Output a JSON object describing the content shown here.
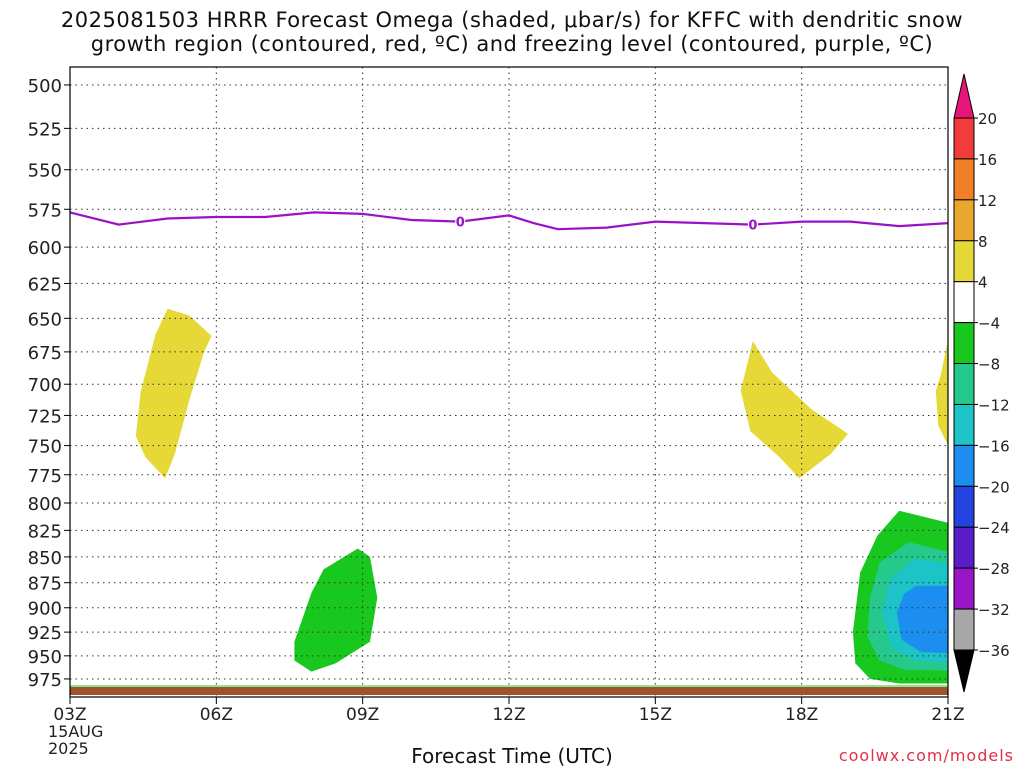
{
  "title_line1": "2025081503 HRRR Forecast Omega (shaded, μbar/s) for KFFC with dendritic snow",
  "title_line2": "growth region (contoured, red, ºC) and freezing level (contoured, purple, ºC)",
  "credit": "coolwx.com/models",
  "chart_data": {
    "type": "time-height cross section",
    "title": "2025081503 HRRR Forecast Omega (shaded, μbar/s) for KFFC with dendritic snow growth region (contoured, red, ºC) and freezing level (contoured, purple, ºC)",
    "xlabel": "Forecast Time (UTC)",
    "ylabel": "",
    "x_range_hours": [
      3,
      21
    ],
    "x_ticks": [
      {
        "hour": 3,
        "label": "03Z",
        "sub1": "15AUG",
        "sub2": "2025"
      },
      {
        "hour": 6,
        "label": "06Z"
      },
      {
        "hour": 9,
        "label": "09Z"
      },
      {
        "hour": 12,
        "label": "12Z"
      },
      {
        "hour": 15,
        "label": "15Z"
      },
      {
        "hour": 18,
        "label": "18Z"
      },
      {
        "hour": 21,
        "label": "21Z"
      }
    ],
    "y_scale": "log pressure (inverted)",
    "y_range_mb": [
      490,
      995
    ],
    "y_ticks": [
      500,
      525,
      550,
      575,
      600,
      625,
      650,
      675,
      700,
      725,
      750,
      775,
      800,
      825,
      850,
      875,
      900,
      925,
      950,
      975
    ],
    "grid": true,
    "colorbar": {
      "units": "μbar/s",
      "labels": [
        "20",
        "16",
        "12",
        "8",
        "4",
        "−4",
        "−8",
        "−12",
        "−16",
        "−20",
        "−24",
        "−28",
        "−32",
        "−36"
      ],
      "bins": [
        {
          "from": 20,
          "to": 24,
          "color": "#e8157a"
        },
        {
          "from": 16,
          "to": 20,
          "color": "#f23b3b"
        },
        {
          "from": 12,
          "to": 16,
          "color": "#f07f25"
        },
        {
          "from": 8,
          "to": 12,
          "color": "#e9a72e"
        },
        {
          "from": 4,
          "to": 8,
          "color": "#e6d836"
        },
        {
          "from": -4,
          "to": 4,
          "color": "#ffffff"
        },
        {
          "from": -8,
          "to": -4,
          "color": "#19c81e"
        },
        {
          "from": -12,
          "to": -8,
          "color": "#25c98c"
        },
        {
          "from": -16,
          "to": -12,
          "color": "#1cc4c8"
        },
        {
          "from": -20,
          "to": -16,
          "color": "#1b8ef0"
        },
        {
          "from": -24,
          "to": -20,
          "color": "#2342e0"
        },
        {
          "from": -28,
          "to": -24,
          "color": "#5a1ec8"
        },
        {
          "from": -32,
          "to": -28,
          "color": "#9a14c8"
        },
        {
          "from": -36,
          "to": -32,
          "color": "#a8a8a8"
        },
        {
          "from": -40,
          "to": -36,
          "color": "#000000"
        }
      ]
    },
    "freezing_level": {
      "color": "#9a12c6",
      "contour_label": "0",
      "label_hours": [
        11,
        17
      ],
      "points": [
        [
          3,
          577
        ],
        [
          4,
          585
        ],
        [
          5,
          581
        ],
        [
          6,
          580
        ],
        [
          7,
          580
        ],
        [
          8,
          577
        ],
        [
          9,
          578
        ],
        [
          10,
          582
        ],
        [
          11,
          583
        ],
        [
          12,
          579
        ],
        [
          12.5,
          584
        ],
        [
          13,
          588
        ],
        [
          14,
          587
        ],
        [
          15,
          583
        ],
        [
          16,
          584
        ],
        [
          17,
          585
        ],
        [
          18,
          583
        ],
        [
          19,
          583
        ],
        [
          20,
          586
        ],
        [
          21,
          584
        ]
      ]
    },
    "omega_regions": [
      {
        "value_class": "4 to 8",
        "color": "#e6d836",
        "points": [
          [
            5.0,
            643
          ],
          [
            5.45,
            648
          ],
          [
            5.9,
            663
          ],
          [
            5.75,
            675
          ],
          [
            5.45,
            712
          ],
          [
            5.15,
            757
          ],
          [
            4.95,
            778
          ],
          [
            4.55,
            760
          ],
          [
            4.35,
            742
          ],
          [
            4.45,
            706
          ],
          [
            4.75,
            662
          ]
        ]
      },
      {
        "value_class": "4 to 8",
        "color": "#e6d836",
        "points": [
          [
            17.0,
            667
          ],
          [
            17.4,
            691
          ],
          [
            18.2,
            720
          ],
          [
            18.95,
            740
          ],
          [
            18.6,
            757
          ],
          [
            17.95,
            778
          ],
          [
            17.55,
            760
          ],
          [
            16.95,
            738
          ],
          [
            16.75,
            705
          ]
        ]
      },
      {
        "value_class": "4 to 8",
        "color": "#e6d836",
        "points": [
          [
            21.0,
            666
          ],
          [
            20.85,
            693
          ],
          [
            20.75,
            705
          ],
          [
            20.8,
            733
          ],
          [
            21.0,
            750
          ]
        ]
      },
      {
        "value_class": "-8 to -4",
        "color": "#19c81e",
        "points": [
          [
            8.9,
            842
          ],
          [
            9.15,
            850
          ],
          [
            9.3,
            890
          ],
          [
            9.15,
            935
          ],
          [
            8.45,
            958
          ],
          [
            7.95,
            967
          ],
          [
            7.6,
            955
          ],
          [
            7.6,
            935
          ],
          [
            7.95,
            885
          ],
          [
            8.2,
            862
          ]
        ]
      },
      {
        "value_class": "-8 to -4",
        "color": "#19c81e",
        "points": [
          [
            20.0,
            807
          ],
          [
            21.0,
            818
          ],
          [
            21.0,
            980
          ],
          [
            20.0,
            980
          ],
          [
            19.4,
            975
          ],
          [
            19.1,
            958
          ],
          [
            19.05,
            925
          ],
          [
            19.2,
            865
          ],
          [
            19.55,
            830
          ]
        ]
      },
      {
        "value_class": "-12 to -8",
        "color": "#25c98c",
        "points": [
          [
            20.2,
            836
          ],
          [
            21.0,
            845
          ],
          [
            21.0,
            966
          ],
          [
            20.1,
            965
          ],
          [
            19.6,
            955
          ],
          [
            19.35,
            930
          ],
          [
            19.4,
            890
          ],
          [
            19.6,
            855
          ]
        ]
      },
      {
        "value_class": "-16 to -12",
        "color": "#1cc4c8",
        "points": [
          [
            20.3,
            852
          ],
          [
            21.0,
            856
          ],
          [
            21.0,
            958
          ],
          [
            20.3,
            954
          ],
          [
            19.85,
            942
          ],
          [
            19.65,
            905
          ],
          [
            19.8,
            872
          ]
        ]
      },
      {
        "value_class": "-20 to -16",
        "color": "#1b8ef0",
        "points": [
          [
            20.35,
            878
          ],
          [
            21.0,
            878
          ],
          [
            21.0,
            947
          ],
          [
            20.45,
            946
          ],
          [
            20.05,
            933
          ],
          [
            19.95,
            905
          ],
          [
            20.1,
            886
          ]
        ]
      }
    ],
    "surface": {
      "color": "#a0522d"
    }
  }
}
